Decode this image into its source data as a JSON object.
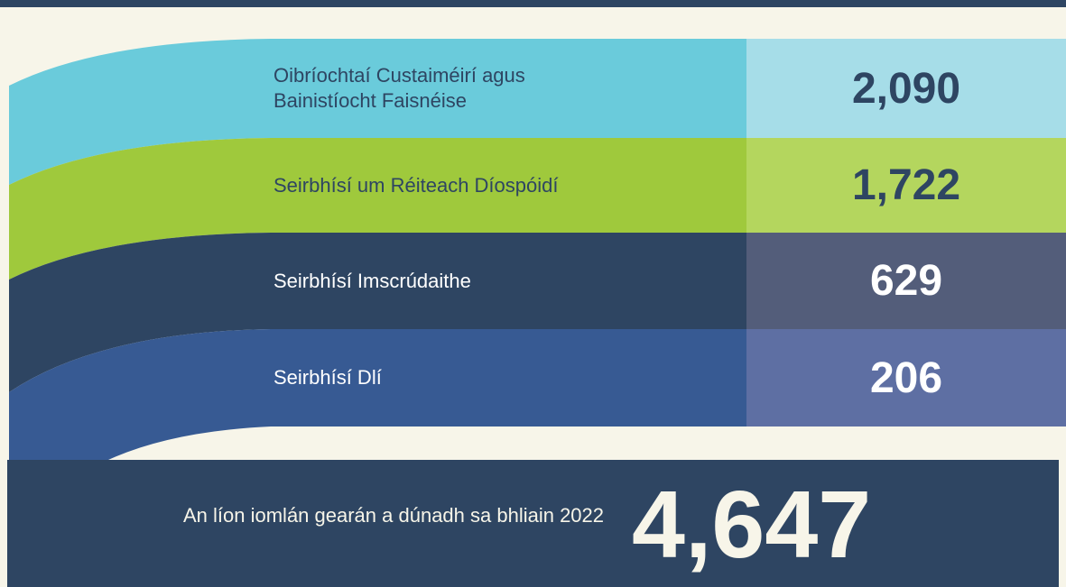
{
  "rows": [
    {
      "label": "Oibríochtaí Custaiméirí agus Bainistíocht Faisnéise",
      "value": "2,090"
    },
    {
      "label": "Seirbhísí um Réiteach Díospóidí",
      "value": "1,722"
    },
    {
      "label": "Seirbhísí Imscrúdaithe",
      "value": "629"
    },
    {
      "label": "Seirbhísí Dlí",
      "value": "206"
    }
  ],
  "total": {
    "label": "An líon iomlán gearán a dúnadh sa bhliain 2022",
    "value": "4,647"
  }
}
